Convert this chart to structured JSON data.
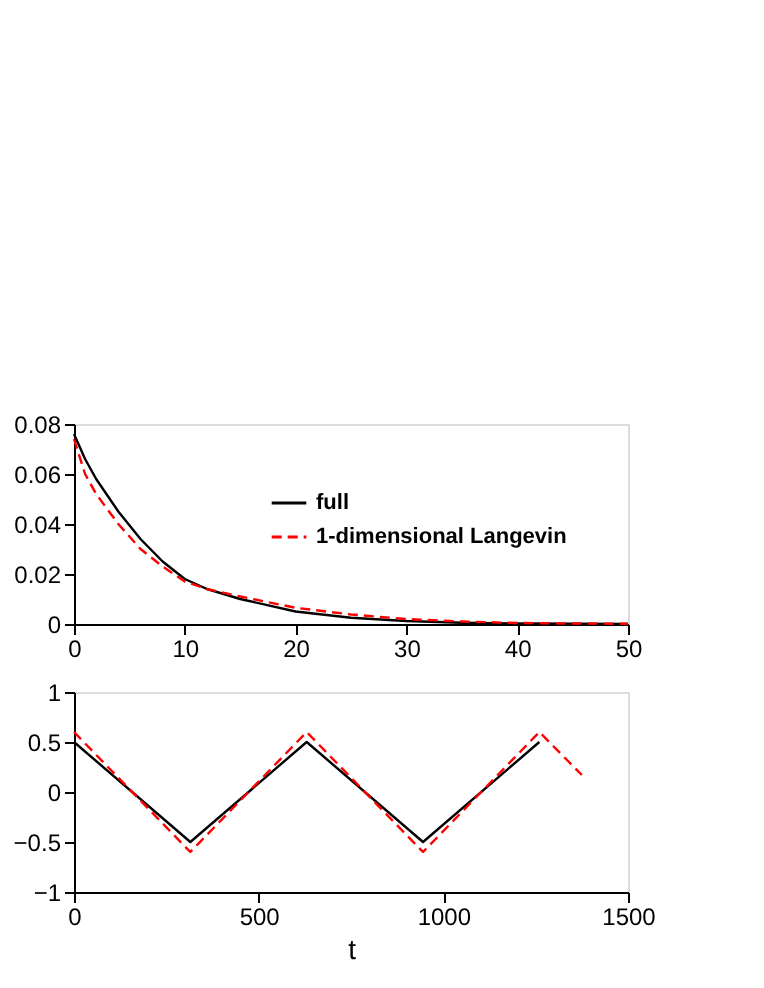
{
  "chart_data": [
    {
      "type": "line",
      "x": [
        0,
        1,
        2,
        4,
        6,
        8,
        10,
        12,
        15,
        20,
        25,
        30,
        35,
        40,
        45,
        50
      ],
      "xlim": [
        0,
        50
      ],
      "xticks": [
        0,
        10,
        20,
        30,
        40,
        50
      ],
      "ylim": [
        0,
        0.08
      ],
      "yticks": [
        0,
        0.02,
        0.04,
        0.06,
        0.08
      ],
      "grid": false,
      "legend": "top right",
      "series": [
        {
          "name": "full",
          "color": "#000000",
          "line_style": "solid",
          "values": [
            0.076,
            0.066,
            0.058,
            0.045,
            0.034,
            0.025,
            0.018,
            0.014,
            0.01,
            0.005,
            0.0025,
            0.0012,
            0.0005,
            0.0002,
            0.0001,
            0
          ]
        },
        {
          "name": "1-dimensional Langevin",
          "color": "#ff0000",
          "line_style": "dashed",
          "values": [
            0.074,
            0.06,
            0.052,
            0.04,
            0.03,
            0.023,
            0.017,
            0.014,
            0.011,
            0.0065,
            0.0038,
            0.002,
            0.001,
            0.0004,
            0.0002,
            0.0001
          ]
        }
      ]
    },
    {
      "type": "line",
      "xlabel": "t",
      "xlim": [
        0,
        1500
      ],
      "xticks": [
        0,
        500,
        1000,
        1500
      ],
      "ylim": [
        -1,
        1
      ],
      "yticks": [
        -1,
        -0.5,
        0,
        0.5,
        1
      ],
      "grid": false,
      "series": [
        {
          "color": "#000000",
          "line_style": "solid",
          "x": [
            0,
            315,
            630,
            945,
            1260
          ],
          "values": [
            0.5,
            -0.5,
            0.5,
            -0.5,
            0.5
          ]
        },
        {
          "color": "#ff0000",
          "line_style": "dashed",
          "x": [
            0,
            315,
            630,
            945,
            1260,
            1375
          ],
          "values": [
            0.6,
            -0.6,
            0.6,
            -0.6,
            0.6,
            0.17
          ]
        }
      ]
    }
  ]
}
